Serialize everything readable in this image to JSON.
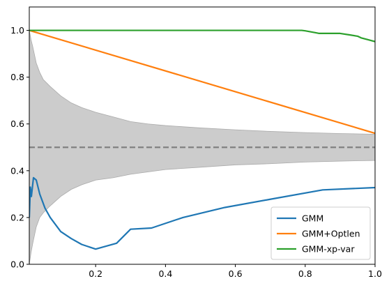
{
  "chart_data": {
    "type": "line",
    "title": "",
    "xlabel": "",
    "ylabel": "",
    "xlim": [
      0.01,
      1.0
    ],
    "ylim": [
      0.0,
      1.1
    ],
    "grid": false,
    "legend_placement": "bottom-right",
    "x_ticks": [
      {
        "value": 0.2,
        "label": "0.2"
      },
      {
        "value": 0.4,
        "label": "0.4"
      },
      {
        "value": 0.6,
        "label": "0.6"
      },
      {
        "value": 0.8,
        "label": "0.8"
      },
      {
        "value": 1.0,
        "label": "1.0"
      }
    ],
    "y_ticks": [
      {
        "value": 0.0,
        "label": "0.0"
      },
      {
        "value": 0.2,
        "label": "0.2"
      },
      {
        "value": 0.4,
        "label": "0.4"
      },
      {
        "value": 0.6,
        "label": "0.6"
      },
      {
        "value": 0.8,
        "label": "0.8"
      },
      {
        "value": 1.0,
        "label": "1.0"
      }
    ],
    "reference_line": {
      "y": 0.5,
      "color": "#808080",
      "style": "dashed"
    },
    "band": {
      "color": "#cccccc",
      "edge_color": "#aaaaaa",
      "upper": [
        [
          0.01,
          1.0
        ],
        [
          0.015,
          0.96
        ],
        [
          0.02,
          0.93
        ],
        [
          0.03,
          0.86
        ],
        [
          0.04,
          0.82
        ],
        [
          0.05,
          0.79
        ],
        [
          0.07,
          0.76
        ],
        [
          0.1,
          0.72
        ],
        [
          0.13,
          0.69
        ],
        [
          0.16,
          0.67
        ],
        [
          0.2,
          0.65
        ],
        [
          0.25,
          0.63
        ],
        [
          0.3,
          0.61
        ],
        [
          0.35,
          0.6
        ],
        [
          0.4,
          0.593
        ],
        [
          0.5,
          0.583
        ],
        [
          0.6,
          0.575
        ],
        [
          0.7,
          0.568
        ],
        [
          0.8,
          0.563
        ],
        [
          0.9,
          0.559
        ],
        [
          1.0,
          0.556
        ]
      ],
      "lower": [
        [
          0.01,
          0.0
        ],
        [
          0.015,
          0.05
        ],
        [
          0.02,
          0.09
        ],
        [
          0.03,
          0.16
        ],
        [
          0.04,
          0.2
        ],
        [
          0.05,
          0.22
        ],
        [
          0.07,
          0.25
        ],
        [
          0.1,
          0.29
        ],
        [
          0.13,
          0.32
        ],
        [
          0.16,
          0.34
        ],
        [
          0.2,
          0.36
        ],
        [
          0.25,
          0.37
        ],
        [
          0.3,
          0.385
        ],
        [
          0.35,
          0.395
        ],
        [
          0.4,
          0.405
        ],
        [
          0.5,
          0.415
        ],
        [
          0.6,
          0.425
        ],
        [
          0.7,
          0.43
        ],
        [
          0.8,
          0.437
        ],
        [
          0.9,
          0.441
        ],
        [
          1.0,
          0.444
        ]
      ]
    },
    "series": [
      {
        "name": "GMM",
        "color": "#1f77b4",
        "points": [
          [
            0.01,
            0.2
          ],
          [
            0.013,
            0.33
          ],
          [
            0.016,
            0.29
          ],
          [
            0.019,
            0.33
          ],
          [
            0.022,
            0.37
          ],
          [
            0.03,
            0.36
          ],
          [
            0.04,
            0.3
          ],
          [
            0.055,
            0.24
          ],
          [
            0.07,
            0.2
          ],
          [
            0.1,
            0.14
          ],
          [
            0.13,
            0.11
          ],
          [
            0.16,
            0.085
          ],
          [
            0.2,
            0.065
          ],
          [
            0.26,
            0.09
          ],
          [
            0.3,
            0.15
          ],
          [
            0.36,
            0.155
          ],
          [
            0.45,
            0.2
          ],
          [
            0.57,
            0.243
          ],
          [
            0.7,
            0.278
          ],
          [
            0.85,
            0.318
          ],
          [
            1.0,
            0.328
          ]
        ]
      },
      {
        "name": "GMM+Optlen",
        "color": "#ff7f0e",
        "points": [
          [
            0.01,
            1.0
          ],
          [
            1.0,
            0.56
          ]
        ]
      },
      {
        "name": "GMM-xp-var",
        "color": "#2ca02c",
        "points": [
          [
            0.01,
            1.0
          ],
          [
            0.79,
            1.0
          ],
          [
            0.8,
            0.998
          ],
          [
            0.83,
            0.99
          ],
          [
            0.84,
            0.987
          ],
          [
            0.9,
            0.987
          ],
          [
            0.93,
            0.98
          ],
          [
            0.95,
            0.975
          ],
          [
            0.96,
            0.968
          ],
          [
            0.98,
            0.96
          ],
          [
            1.0,
            0.952
          ]
        ]
      }
    ]
  }
}
